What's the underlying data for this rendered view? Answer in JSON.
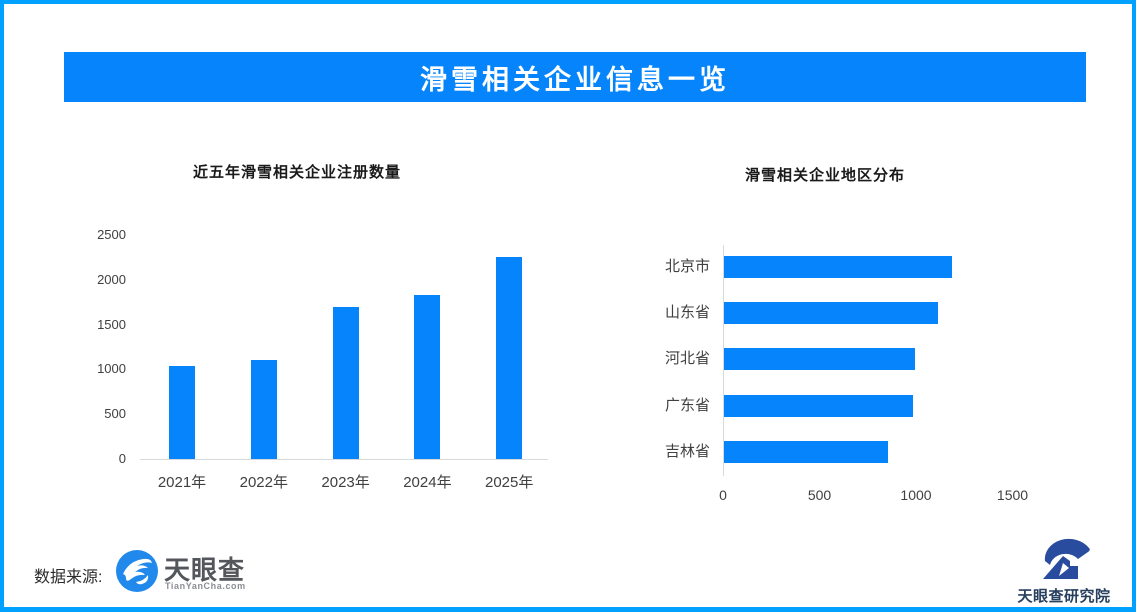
{
  "page": {
    "border_color": "#00A1FF",
    "background_color": "#FFFFFF"
  },
  "header": {
    "title": "滑雪相关企业信息一览",
    "background_color": "#0584FC",
    "text_color": "#FFFFFF"
  },
  "chart_data": [
    {
      "type": "bar",
      "orientation": "vertical",
      "title": "近五年滑雪相关企业注册数量",
      "categories": [
        "2021年",
        "2022年",
        "2023年",
        "2024年",
        "2025年"
      ],
      "values": [
        1040,
        1110,
        1700,
        1830,
        2260
      ],
      "xlabel": "",
      "ylabel": "",
      "ylim": [
        0,
        2500
      ],
      "yticks": [
        0,
        500,
        1000,
        1500,
        2000,
        2500
      ],
      "grid": false,
      "legend": "none",
      "bar_color": "#0584FC"
    },
    {
      "type": "bar",
      "orientation": "horizontal",
      "title": "滑雪相关企业地区分布",
      "categories": [
        "北京市",
        "山东省",
        "河北省",
        "广东省",
        "吉林省"
      ],
      "values": [
        1180,
        1110,
        990,
        980,
        850
      ],
      "xlabel": "",
      "ylabel": "",
      "xlim": [
        0,
        2000
      ],
      "xticks": [
        0,
        500,
        1000,
        1500
      ],
      "grid": false,
      "legend": "none",
      "bar_color": "#0584FC"
    }
  ],
  "footer": {
    "source_label": "数据来源:",
    "source_logo": {
      "name": "天眼查",
      "subtext": "TianYanCha.com",
      "icon": "tianyancha-eye-icon",
      "icon_color": "#2189EB"
    },
    "publisher_logo": {
      "name": "天眼查研究院",
      "icon": "tianyancha-research-swoosh-icon",
      "icon_color": "#2A4C9F"
    }
  }
}
